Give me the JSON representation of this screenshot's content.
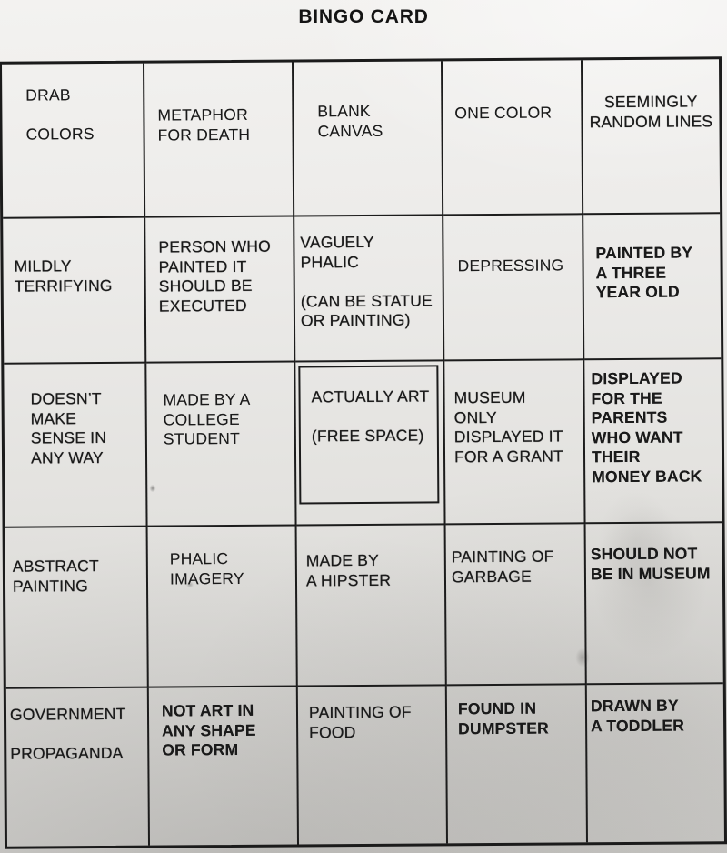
{
  "title": "BINGO CARD",
  "colors": {
    "paper": "#e9e8e5",
    "ink": "#1a1a1a",
    "grid_line": "#1c1c1c"
  },
  "grid": {
    "rows": 5,
    "cols": 5,
    "free_space": {
      "row": 3,
      "col": 3,
      "label": "(FREE SPACE)"
    },
    "cells": [
      {
        "id": "r1c1",
        "lines": [
          "DRAB",
          "",
          "COLORS"
        ]
      },
      {
        "id": "r1c2",
        "lines": [
          "METAPHOR",
          "FOR DEATH"
        ]
      },
      {
        "id": "r1c3",
        "lines": [
          "BLANK",
          "CANVAS"
        ]
      },
      {
        "id": "r1c4",
        "lines": [
          "ONE COLOR"
        ]
      },
      {
        "id": "r1c5",
        "lines": [
          "SEEMINGLY",
          "RANDOM LINES"
        ]
      },
      {
        "id": "r2c1",
        "lines": [
          "MILDLY",
          "TERRIFYING"
        ]
      },
      {
        "id": "r2c2",
        "lines": [
          "PERSON WHO",
          "PAINTED IT",
          "SHOULD BE",
          "EXECUTED"
        ]
      },
      {
        "id": "r2c3",
        "lines": [
          "VAGUELY",
          "PHALIC",
          "",
          "(CAN BE STATUE",
          "OR PAINTING)"
        ]
      },
      {
        "id": "r2c4",
        "lines": [
          "DEPRESSING"
        ]
      },
      {
        "id": "r2c5",
        "lines": [
          "PAINTED BY",
          "A THREE",
          "YEAR OLD"
        ]
      },
      {
        "id": "r3c1",
        "lines": [
          "DOESN’T",
          "MAKE",
          "SENSE IN",
          "ANY WAY"
        ]
      },
      {
        "id": "r3c2",
        "lines": [
          "MADE BY A",
          "COLLEGE",
          "STUDENT"
        ]
      },
      {
        "id": "r3c3",
        "lines": [
          "ACTUALLY ART",
          "",
          "(FREE SPACE)"
        ]
      },
      {
        "id": "r3c4",
        "lines": [
          "MUSEUM",
          "ONLY",
          "DISPLAYED IT",
          "FOR A GRANT"
        ]
      },
      {
        "id": "r3c5",
        "lines": [
          "DISPLAYED",
          "FOR THE",
          "PARENTS",
          "WHO WANT",
          "THEIR",
          "MONEY BACK"
        ]
      },
      {
        "id": "r4c1",
        "lines": [
          "ABSTRACT",
          "PAINTING"
        ]
      },
      {
        "id": "r4c2",
        "lines": [
          "PHALIC",
          "IMAGERY"
        ]
      },
      {
        "id": "r4c3",
        "lines": [
          "MADE BY",
          "A HIPSTER"
        ]
      },
      {
        "id": "r4c4",
        "lines": [
          "PAINTING OF",
          "GARBAGE"
        ]
      },
      {
        "id": "r4c5",
        "lines": [
          "SHOULD NOT",
          "BE IN MUSEUM"
        ]
      },
      {
        "id": "r5c1",
        "lines": [
          "GOVERNMENT",
          "",
          "PROPAGANDA"
        ]
      },
      {
        "id": "r5c2",
        "lines": [
          "NOT ART IN",
          "ANY SHAPE",
          "OR FORM"
        ]
      },
      {
        "id": "r5c3",
        "lines": [
          "PAINTING OF",
          "FOOD"
        ]
      },
      {
        "id": "r5c4",
        "lines": [
          "FOUND IN",
          "DUMPSTER"
        ]
      },
      {
        "id": "r5c5",
        "lines": [
          "DRAWN BY",
          "A TODDLER"
        ]
      }
    ]
  }
}
